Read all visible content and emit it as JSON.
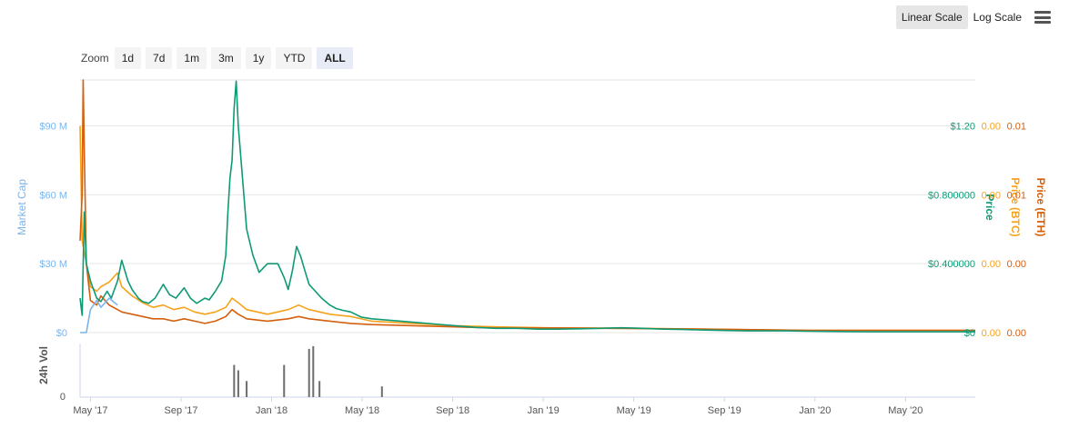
{
  "toolbar": {
    "linear_label": "Linear Scale",
    "log_label": "Log Scale",
    "zoom_label": "Zoom",
    "zoom_buttons": [
      "1d",
      "7d",
      "1m",
      "3m",
      "1y",
      "YTD",
      "ALL"
    ],
    "active_zoom": "ALL",
    "active_scale": "Linear Scale"
  },
  "colors": {
    "market_cap": "#7cb5ec",
    "price_usd": "#0f9a76",
    "price_btc": "#f7a21b",
    "price_eth": "#d45f0d",
    "volume": "#6d6d6d",
    "grid": "#e6e6e6"
  },
  "chart_data": {
    "type": "line",
    "x_ticks": [
      "May '17",
      "Sep '17",
      "Jan '18",
      "May '18",
      "Sep '18",
      "Jan '19",
      "May '19",
      "Sep '19",
      "Jan '20",
      "May '20"
    ],
    "left_axis": {
      "label": "Market Cap",
      "ticks": [
        "$0",
        "$30 M",
        "$60 M",
        "$90 M"
      ],
      "range": [
        0,
        110
      ]
    },
    "right_axis_price": {
      "label": "Price",
      "ticks": [
        "$0",
        "$0.400000",
        "$0.800000",
        "$1.20"
      ],
      "range": [
        0,
        1.467
      ]
    },
    "right_axis_btc": {
      "label": "Price (BTC)",
      "ticks": [
        "0.00",
        "0.00",
        "0.00",
        "0.00"
      ]
    },
    "right_axis_eth": {
      "label": "Price (ETH)",
      "ticks": [
        "0.00",
        "0.00",
        "0.01",
        "0.01"
      ]
    },
    "volume_axis": {
      "label": "24h Vol",
      "ticks": [
        "0"
      ]
    },
    "grid": true,
    "series": [
      {
        "name": "Market Cap",
        "x": [
          0.0,
          0.1,
          0.3,
          0.5,
          0.8,
          1.0,
          1.4,
          1.8
        ],
        "values": [
          0,
          0,
          0,
          10,
          14,
          11,
          15,
          12
        ]
      },
      {
        "name": "Price",
        "x": [
          0.0,
          0.1,
          0.2,
          0.3,
          0.5,
          0.8,
          1.0,
          1.3,
          1.5,
          1.8,
          2.0,
          2.3,
          2.5,
          2.8,
          3.0,
          3.3,
          3.6,
          4.0,
          4.3,
          4.6,
          5.0,
          5.3,
          5.6,
          6.0,
          6.2,
          6.5,
          6.8,
          7.0,
          7.1,
          7.2,
          7.3,
          7.4,
          7.5,
          7.6,
          7.8,
          8.0,
          8.3,
          8.6,
          9.0,
          9.5,
          9.8,
          10.0,
          10.2,
          10.4,
          10.6,
          10.8,
          11.0,
          11.3,
          11.6,
          12.0,
          12.3,
          12.6,
          13.0,
          13.5,
          14.0,
          15.0,
          16.0,
          17.0,
          18.0,
          19.0,
          20.0,
          21.0,
          22.0,
          23.0,
          24.0,
          25.0,
          26.0,
          27.0,
          28.0,
          29.0,
          30.0,
          31.0,
          32.0,
          33.0,
          34.0,
          35.0,
          36.0,
          37.0,
          38.0,
          39.0,
          40.0,
          41.0,
          42.0,
          43.0
        ],
        "values": [
          0.2,
          0.1,
          0.7,
          0.4,
          0.3,
          0.2,
          0.18,
          0.24,
          0.2,
          0.3,
          0.42,
          0.3,
          0.25,
          0.2,
          0.18,
          0.17,
          0.2,
          0.28,
          0.22,
          0.2,
          0.26,
          0.2,
          0.17,
          0.2,
          0.19,
          0.24,
          0.3,
          0.45,
          0.7,
          0.9,
          1.0,
          1.3,
          1.46,
          1.2,
          0.9,
          0.6,
          0.45,
          0.35,
          0.4,
          0.4,
          0.32,
          0.25,
          0.36,
          0.5,
          0.44,
          0.36,
          0.28,
          0.24,
          0.2,
          0.16,
          0.14,
          0.13,
          0.12,
          0.09,
          0.08,
          0.07,
          0.06,
          0.05,
          0.04,
          0.03,
          0.025,
          0.025,
          0.02,
          0.02,
          0.022,
          0.025,
          0.028,
          0.025,
          0.02,
          0.018,
          0.015,
          0.012,
          0.01,
          0.01,
          0.01,
          0.008,
          0.007,
          0.006,
          0.005,
          0.005,
          0.005,
          0.005,
          0.005,
          0.005
        ]
      },
      {
        "name": "Price (BTC)",
        "x": [
          0.0,
          0.1,
          0.3,
          0.5,
          0.8,
          1.0,
          1.4,
          1.8,
          2.0,
          2.5,
          3.0,
          3.5,
          4.0,
          4.5,
          5.0,
          5.5,
          6.0,
          6.5,
          7.0,
          7.3,
          7.6,
          8.0,
          9.0,
          10.0,
          10.5,
          11.0,
          12.0,
          13.0,
          14.0,
          16.0,
          18.0,
          20.0,
          23.0,
          26.0,
          30.0,
          35.0,
          40.0,
          43.0
        ],
        "values": [
          90,
          40,
          30,
          20,
          18,
          20,
          22,
          26,
          20,
          16,
          13,
          11,
          12,
          10,
          11,
          9,
          8,
          9,
          11,
          15,
          13,
          10,
          8,
          10,
          12,
          10,
          8,
          7,
          5,
          4,
          3,
          2.5,
          2,
          2,
          1.5,
          1,
          1,
          1
        ]
      },
      {
        "name": "Price (ETH)",
        "x": [
          0.0,
          0.1,
          0.15,
          0.2,
          0.3,
          0.5,
          0.8,
          1.0,
          1.4,
          1.8,
          2.0,
          2.5,
          3.0,
          3.5,
          4.0,
          4.5,
          5.0,
          5.5,
          6.0,
          6.5,
          7.0,
          7.3,
          7.6,
          8.0,
          9.0,
          10.0,
          10.5,
          11.0,
          12.0,
          13.0,
          14.0,
          16.0,
          18.0,
          20.0,
          23.0,
          26.0,
          30.0,
          35.0,
          40.0,
          43.0
        ],
        "values": [
          40,
          60,
          110,
          80,
          30,
          14,
          12,
          16,
          12,
          10,
          9,
          8,
          7,
          6,
          6,
          5,
          6,
          5,
          4,
          5,
          7,
          10,
          8,
          6,
          5,
          6,
          7,
          6,
          5,
          4,
          3.5,
          3,
          2.5,
          2,
          2,
          1.8,
          1.5,
          1,
          1,
          1
        ]
      }
    ],
    "volume_bars": [
      {
        "x": 7.4,
        "v": 0.6
      },
      {
        "x": 7.6,
        "v": 0.5
      },
      {
        "x": 8.0,
        "v": 0.3
      },
      {
        "x": 9.8,
        "v": 0.6
      },
      {
        "x": 11.0,
        "v": 0.9
      },
      {
        "x": 11.2,
        "v": 0.95
      },
      {
        "x": 11.5,
        "v": 0.3
      },
      {
        "x": 14.5,
        "v": 0.2
      }
    ]
  }
}
